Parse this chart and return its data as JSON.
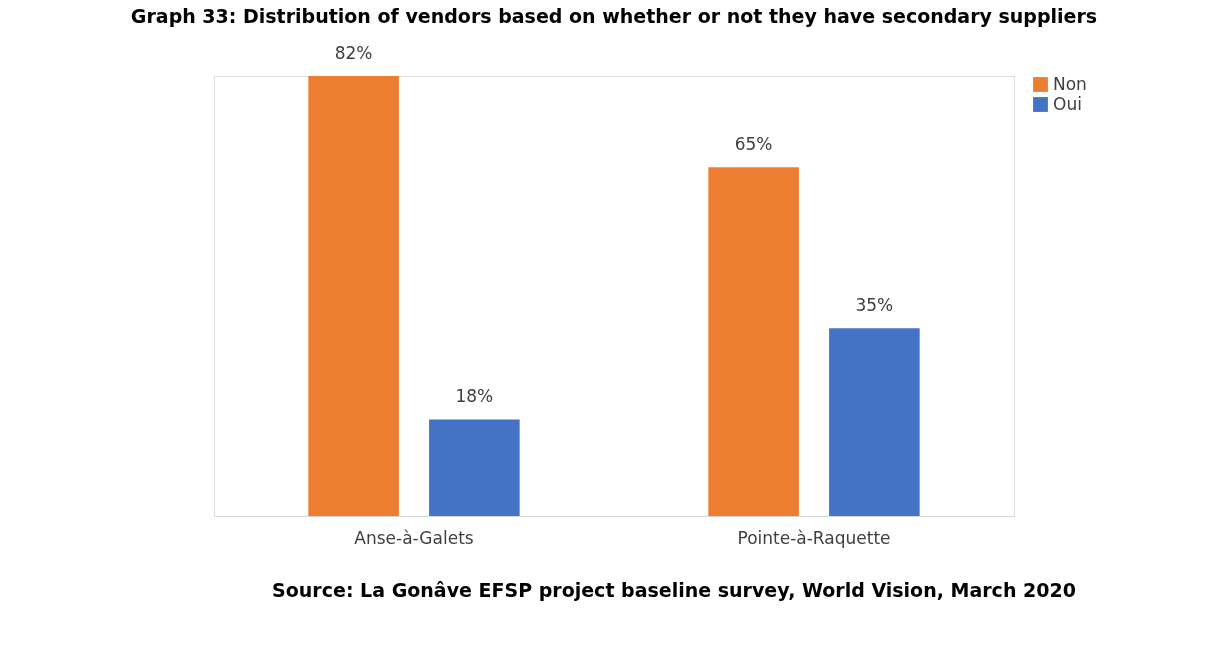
{
  "chart_data": {
    "type": "bar",
    "title": "Graph 33: Distribution of vendors based on whether or not they have secondary suppliers",
    "categories": [
      "Anse-à-Galets",
      "Pointe-à-Raquette"
    ],
    "series": [
      {
        "name": "Non",
        "color": "#ed7d31",
        "values": [
          82,
          65
        ],
        "value_labels": [
          "82%",
          "65%"
        ]
      },
      {
        "name": "Oui",
        "color": "#4472c4",
        "values": [
          18,
          35
        ],
        "value_labels": [
          "18%",
          "35%"
        ]
      }
    ],
    "legend": "right",
    "grid": false,
    "annotations": [
      "Source: La Gonâve EFSP project baseline survey, World Vision, March 2020"
    ]
  }
}
